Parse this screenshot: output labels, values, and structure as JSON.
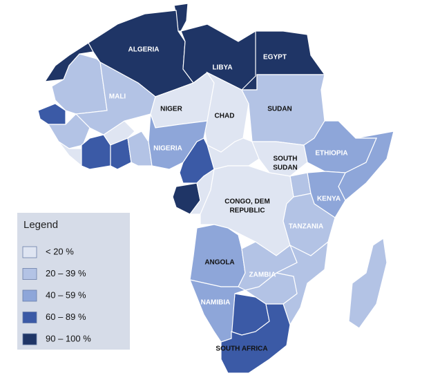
{
  "legend": {
    "title": "Legend",
    "items": [
      {
        "label": "< 20 %",
        "color": "#dfe5f2"
      },
      {
        "label": "20 – 39 %",
        "color": "#b3c3e5"
      },
      {
        "label": "40 – 59 %",
        "color": "#8ea6d9"
      },
      {
        "label": "60 – 89 %",
        "color": "#3b5aa6"
      },
      {
        "label": "90 – 100 %",
        "color": "#1f3566"
      }
    ]
  },
  "countries": [
    {
      "lines": [
        "ALGERIA"
      ],
      "color": "#1f3566",
      "text_color": "#ffffff"
    },
    {
      "lines": [
        "LIBYA"
      ],
      "color": "#1f3566",
      "text_color": "#ffffff"
    },
    {
      "lines": [
        "EGYPT"
      ],
      "color": "#1f3566",
      "text_color": "#ffffff"
    },
    {
      "lines": [
        "MALI"
      ],
      "color": "#b3c3e5",
      "text_color": "#ffffff"
    },
    {
      "lines": [
        "NIGER"
      ],
      "color": "#dfe5f2",
      "text_color": "#111111"
    },
    {
      "lines": [
        "CHAD"
      ],
      "color": "#dfe5f2",
      "text_color": "#111111"
    },
    {
      "lines": [
        "SUDAN"
      ],
      "color": "#b3c3e5",
      "text_color": "#111111"
    },
    {
      "lines": [
        "SOUTH",
        "SUDAN"
      ],
      "color": "#dfe5f2",
      "text_color": "#111111"
    },
    {
      "lines": [
        "ETHIOPIA"
      ],
      "color": "#8ea6d9",
      "text_color": "#ffffff"
    },
    {
      "lines": [
        "NIGERIA"
      ],
      "color": "#8ea6d9",
      "text_color": "#ffffff"
    },
    {
      "lines": [
        "KENYA"
      ],
      "color": "#8ea6d9",
      "text_color": "#ffffff"
    },
    {
      "lines": [
        "CONGO, DEM",
        "REPUBLIC"
      ],
      "color": "#dfe5f2",
      "text_color": "#111111"
    },
    {
      "lines": [
        "TANZANIA"
      ],
      "color": "#b3c3e5",
      "text_color": "#ffffff"
    },
    {
      "lines": [
        "ANGOLA"
      ],
      "color": "#8ea6d9",
      "text_color": "#111111"
    },
    {
      "lines": [
        "ZAMBIA"
      ],
      "color": "#b3c3e5",
      "text_color": "#ffffff"
    },
    {
      "lines": [
        "NAMIBIA"
      ],
      "color": "#8ea6d9",
      "text_color": "#ffffff"
    },
    {
      "lines": [
        "SOUTH AFRICA"
      ],
      "color": "#3b5aa6",
      "text_color": "#111111"
    }
  ]
}
